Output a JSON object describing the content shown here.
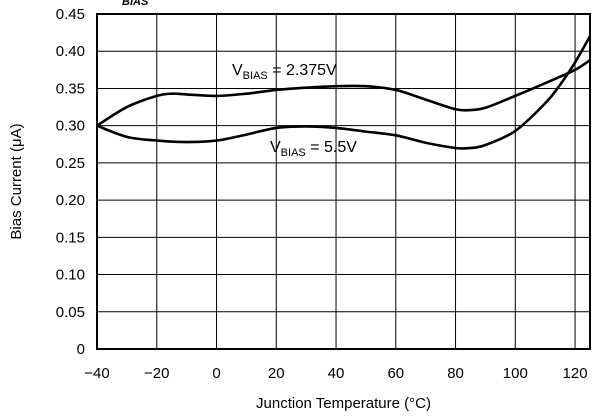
{
  "chart_data": {
    "type": "line",
    "title": "",
    "xlabel": "Junction Temperature (°C)",
    "ylabel": "Bias Current (μA)",
    "xlim": [
      -40,
      125
    ],
    "ylim": [
      0,
      0.45
    ],
    "x_ticks": [
      -40,
      -20,
      0,
      20,
      40,
      60,
      80,
      100,
      120
    ],
    "x_tick_labels": [
      "−40",
      "−20",
      "0",
      "20",
      "40",
      "60",
      "80",
      "100",
      "120"
    ],
    "y_ticks": [
      0,
      0.05,
      0.1,
      0.15,
      0.2,
      0.25,
      0.3,
      0.35,
      0.4,
      0.45
    ],
    "y_tick_labels": [
      "0",
      "0.05",
      "0.10",
      "0.15",
      "0.20",
      "0.25",
      "0.30",
      "0.35",
      "0.40",
      "0.45"
    ],
    "grid": true,
    "series": [
      {
        "name_main": "V",
        "name_sub": "BIAS",
        "name_rest": " = 2.375V",
        "x": [
          -40,
          -30,
          -20,
          -15,
          -10,
          0,
          10,
          20,
          30,
          40,
          50,
          60,
          70,
          80,
          85,
          90,
          100,
          110,
          120,
          125
        ],
        "y": [
          0.3,
          0.325,
          0.34,
          0.343,
          0.342,
          0.34,
          0.343,
          0.348,
          0.351,
          0.353,
          0.353,
          0.348,
          0.335,
          0.322,
          0.321,
          0.324,
          0.34,
          0.357,
          0.375,
          0.388
        ]
      },
      {
        "name_main": "V",
        "name_sub": "BIAS",
        "name_rest": " = 5.5V",
        "x": [
          -40,
          -30,
          -20,
          -10,
          0,
          10,
          20,
          30,
          40,
          50,
          60,
          70,
          80,
          85,
          90,
          100,
          110,
          115,
          120,
          125
        ],
        "y": [
          0.3,
          0.285,
          0.28,
          0.278,
          0.28,
          0.288,
          0.297,
          0.299,
          0.297,
          0.292,
          0.287,
          0.277,
          0.27,
          0.27,
          0.274,
          0.293,
          0.33,
          0.355,
          0.385,
          0.42
        ]
      }
    ],
    "annotations": [
      {
        "main": "V",
        "sub": "BIAS",
        "rest": " = 2.375V"
      },
      {
        "main": "V",
        "sub": "BIAS",
        "rest": " = 5.5V"
      }
    ],
    "top_partial_label": "BIAS"
  }
}
